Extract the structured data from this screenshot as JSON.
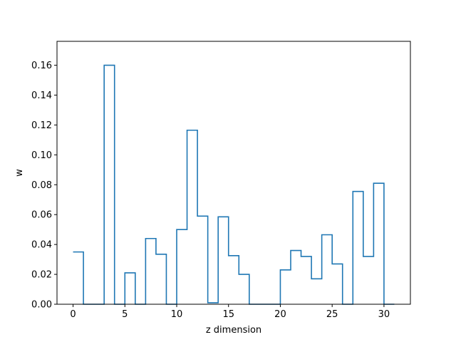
{
  "chart_data": {
    "type": "line",
    "style": "step-histogram",
    "title": "",
    "xlabel": "z dimension",
    "ylabel": "w",
    "xlim": [
      -1.55,
      32.55
    ],
    "ylim": [
      0,
      0.176
    ],
    "grid": false,
    "legend": "none",
    "line_color": "#1f77b4",
    "x_ticks": [
      0,
      5,
      10,
      15,
      20,
      25,
      30
    ],
    "x_tick_labels": [
      "0",
      "5",
      "10",
      "15",
      "20",
      "25",
      "30"
    ],
    "y_ticks": [
      0,
      0.02,
      0.04,
      0.06,
      0.08,
      0.1,
      0.12,
      0.14,
      0.16
    ],
    "y_tick_labels": [
      "0.00",
      "0.02",
      "0.04",
      "0.06",
      "0.08",
      "0.10",
      "0.12",
      "0.14",
      "0.16"
    ],
    "bin_start": 0,
    "bin_end": 31,
    "x": [
      0,
      1,
      2,
      3,
      4,
      5,
      6,
      7,
      8,
      9,
      10,
      11,
      12,
      13,
      14,
      15,
      16,
      17,
      18,
      19,
      20,
      21,
      22,
      23,
      24,
      25,
      26,
      27,
      28,
      29,
      30
    ],
    "values": [
      0.035,
      0.0,
      0.0,
      0.16,
      0.0,
      0.021,
      0.0,
      0.044,
      0.0335,
      0.0,
      0.05,
      0.1165,
      0.059,
      0.001,
      0.0585,
      0.0325,
      0.02,
      0.0,
      0.0,
      0.0,
      0.023,
      0.036,
      0.032,
      0.017,
      0.0465,
      0.027,
      0.0,
      0.0755,
      0.032,
      0.081,
      0.0
    ]
  }
}
